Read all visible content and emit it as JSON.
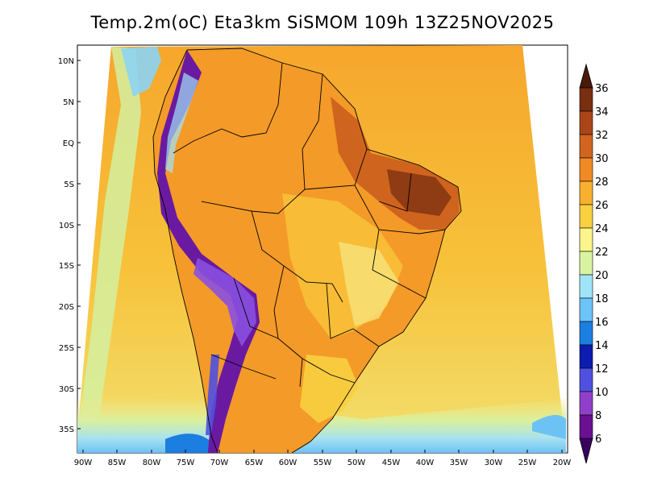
{
  "title": "Temp.2m(oC) Eta3km SiSMOM 109h 13Z25NOV2025",
  "map": {
    "variable": "2 m temperature",
    "units": "oC",
    "lat_labels": [
      "10N",
      "5N",
      "EQ",
      "5S",
      "10S",
      "15S",
      "20S",
      "25S",
      "30S",
      "35S"
    ],
    "lon_labels": [
      "90W",
      "85W",
      "80W",
      "75W",
      "70W",
      "65W",
      "60W",
      "55W",
      "50W",
      "45W",
      "40W",
      "35W",
      "30W",
      "25W",
      "20W"
    ]
  },
  "colorbar": {
    "labels": [
      "36",
      "34",
      "32",
      "30",
      "28",
      "26",
      "24",
      "22",
      "20",
      "18",
      "16",
      "14",
      "12",
      "10",
      "8",
      "6"
    ],
    "colors": [
      "#4a1a08",
      "#7a2e10",
      "#a8461a",
      "#d06420",
      "#f08a24",
      "#f8b030",
      "#f8d040",
      "#fcf48c",
      "#d8f4a0",
      "#a0e4f8",
      "#6cc4f8",
      "#1c7ee0",
      "#0c1cb0",
      "#5050e0",
      "#9040c8",
      "#6a1090",
      "#3a0060"
    ]
  }
}
